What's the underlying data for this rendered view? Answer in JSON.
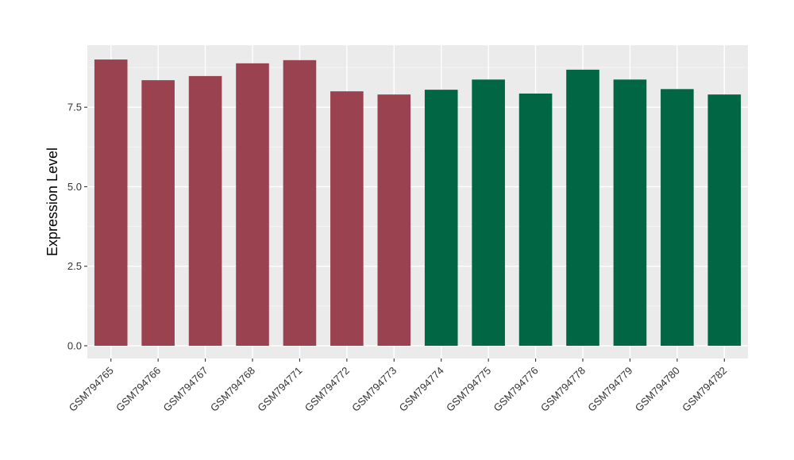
{
  "chart_data": {
    "type": "bar",
    "title": "",
    "xlabel": "",
    "ylabel": "Expression Level",
    "ylim": [
      -0.4,
      9.45
    ],
    "yticks": [
      0.0,
      2.5,
      5.0,
      7.5
    ],
    "ytick_labels": [
      "0.0",
      "2.5",
      "5.0",
      "7.5"
    ],
    "categories": [
      "GSM794765",
      "GSM794766",
      "GSM794767",
      "GSM794768",
      "GSM794771",
      "GSM794772",
      "GSM794773",
      "GSM794774",
      "GSM794775",
      "GSM794776",
      "GSM794778",
      "GSM794779",
      "GSM794780",
      "GSM794782"
    ],
    "values": [
      9.0,
      8.35,
      8.48,
      8.88,
      8.98,
      8.0,
      7.9,
      8.05,
      8.37,
      7.93,
      8.68,
      8.37,
      8.07,
      7.9
    ],
    "groups": [
      0,
      0,
      0,
      0,
      0,
      0,
      0,
      1,
      1,
      1,
      1,
      1,
      1,
      1
    ],
    "group_colors": [
      "#9b4250",
      "#006643"
    ],
    "grid": true,
    "panel_background": "#ebebeb",
    "legend": "none"
  }
}
